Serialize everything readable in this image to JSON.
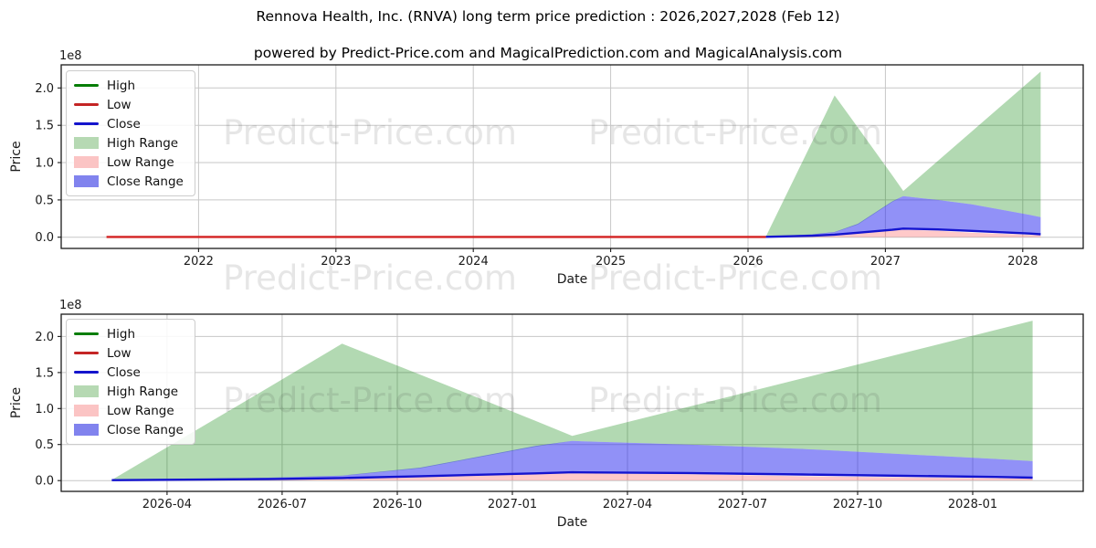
{
  "title": "Rennova Health, Inc. (RNVA) long term price prediction : 2026,2027,2028 (Feb 12)",
  "subtitle": "powered by Predict-Price.com and MagicalPrediction.com and MagicalAnalysis.com",
  "watermark": {
    "text": "Predict-Price.com"
  },
  "legend": {
    "position": "upper left",
    "items": [
      {
        "label": "High",
        "swatch": "line",
        "color": "#077d07"
      },
      {
        "label": "Low",
        "swatch": "line",
        "color": "#c42525"
      },
      {
        "label": "Close",
        "swatch": "line",
        "color": "#1414cc"
      },
      {
        "label": "High Range",
        "swatch": "fill",
        "color": "#b6d9b3"
      },
      {
        "label": "Low Range",
        "swatch": "fill",
        "color": "#fbc4c4"
      },
      {
        "label": "Close Range",
        "swatch": "fill",
        "color": "#8183ee"
      }
    ]
  },
  "chart_data": [
    {
      "id": "top",
      "type": "area",
      "title": "",
      "xlabel": "Date",
      "ylabel": "Price",
      "y_scale_label": "1e8",
      "y_unit_multiplier": 100000000,
      "grid": true,
      "xlim": [
        2021.0,
        2028.44
      ],
      "ylim": [
        -0.15,
        2.31
      ],
      "xticks": [
        {
          "v": 2022,
          "label": "2022"
        },
        {
          "v": 2023,
          "label": "2023"
        },
        {
          "v": 2024,
          "label": "2024"
        },
        {
          "v": 2025,
          "label": "2025"
        },
        {
          "v": 2026,
          "label": "2026"
        },
        {
          "v": 2027,
          "label": "2027"
        },
        {
          "v": 2028,
          "label": "2028"
        }
      ],
      "yticks": [
        {
          "v": 0.0,
          "label": "0.0"
        },
        {
          "v": 0.5,
          "label": "0.5"
        },
        {
          "v": 1.0,
          "label": "1.0"
        },
        {
          "v": 1.5,
          "label": "1.5"
        },
        {
          "v": 2.0,
          "label": "2.0"
        }
      ],
      "series": [
        {
          "name": "High Range",
          "kind": "band",
          "color": "rgba(0,128,0,0.30)",
          "x": [
            2026.13,
            2026.47,
            2026.63,
            2026.8,
            2027.05,
            2027.13,
            2027.38,
            2027.63,
            2028.05,
            2028.13
          ],
          "upper": [
            0.01,
            1.29,
            1.9,
            1.47,
            0.83,
            0.62,
            1.02,
            1.42,
            2.09,
            2.22
          ],
          "lower": [
            0.005,
            0.035,
            0.065,
            0.17,
            0.47,
            0.55,
            0.5,
            0.44,
            0.3,
            0.27
          ]
        },
        {
          "name": "Close Range",
          "kind": "band",
          "color": "rgba(35,35,240,0.50)",
          "x": [
            2026.13,
            2026.47,
            2026.63,
            2026.8,
            2027.05,
            2027.13,
            2027.38,
            2027.63,
            2028.05,
            2028.13
          ],
          "upper": [
            0.008,
            0.04,
            0.07,
            0.18,
            0.48,
            0.55,
            0.5,
            0.44,
            0.3,
            0.27
          ],
          "lower": [
            0.006,
            0.02,
            0.035,
            0.06,
            0.1,
            0.115,
            0.105,
            0.085,
            0.05,
            0.04
          ]
        },
        {
          "name": "Low Range",
          "kind": "band",
          "color": "rgba(255,40,40,0.25)",
          "x": [
            2026.13,
            2026.47,
            2026.63,
            2026.8,
            2027.05,
            2027.13,
            2027.38,
            2027.63,
            2028.05,
            2028.13
          ],
          "upper": [
            0.004,
            0.015,
            0.027,
            0.048,
            0.09,
            0.1,
            0.088,
            0.06,
            0.032,
            0.028
          ],
          "lower": [
            0.002,
            0.002,
            0.002,
            0.002,
            0.002,
            0.002,
            0.002,
            0.002,
            0.002,
            0.002
          ]
        },
        {
          "name": "Low",
          "kind": "line",
          "color": "#d42222",
          "x": [
            2021.33,
            2026.13
          ],
          "y": [
            0.004,
            0.004
          ]
        },
        {
          "name": "Close",
          "kind": "line",
          "color": "#1414cf",
          "x": [
            2026.13,
            2026.47,
            2026.63,
            2026.8,
            2027.05,
            2027.13,
            2027.38,
            2027.63,
            2028.05,
            2028.13
          ],
          "y": [
            0.006,
            0.02,
            0.035,
            0.06,
            0.1,
            0.115,
            0.105,
            0.085,
            0.05,
            0.04
          ]
        }
      ]
    },
    {
      "id": "bottom",
      "type": "area",
      "title": "",
      "xlabel": "Date",
      "ylabel": "Price",
      "y_scale_label": "1e8",
      "y_unit_multiplier": 100000000,
      "grid": true,
      "xlim": [
        2026.02,
        2028.24
      ],
      "ylim": [
        -0.15,
        2.31
      ],
      "xticks": [
        {
          "v": 2026.25,
          "label": "2026-04"
        },
        {
          "v": 2026.5,
          "label": "2026-07"
        },
        {
          "v": 2026.75,
          "label": "2026-10"
        },
        {
          "v": 2027.0,
          "label": "2027-01"
        },
        {
          "v": 2027.25,
          "label": "2027-04"
        },
        {
          "v": 2027.5,
          "label": "2027-07"
        },
        {
          "v": 2027.75,
          "label": "2027-10"
        },
        {
          "v": 2028.0,
          "label": "2028-01"
        }
      ],
      "yticks": [
        {
          "v": 0.0,
          "label": "0.0"
        },
        {
          "v": 0.5,
          "label": "0.5"
        },
        {
          "v": 1.0,
          "label": "1.0"
        },
        {
          "v": 1.5,
          "label": "1.5"
        },
        {
          "v": 2.0,
          "label": "2.0"
        }
      ],
      "series": [
        {
          "name": "High Range",
          "kind": "band",
          "color": "rgba(0,128,0,0.30)",
          "x": [
            2026.13,
            2026.47,
            2026.63,
            2026.8,
            2027.05,
            2027.13,
            2027.38,
            2027.63,
            2028.05,
            2028.13
          ],
          "upper": [
            0.01,
            1.29,
            1.9,
            1.47,
            0.83,
            0.62,
            1.02,
            1.42,
            2.09,
            2.22
          ],
          "lower": [
            0.005,
            0.035,
            0.065,
            0.17,
            0.47,
            0.55,
            0.5,
            0.44,
            0.3,
            0.27
          ]
        },
        {
          "name": "Close Range",
          "kind": "band",
          "color": "rgba(35,35,240,0.50)",
          "x": [
            2026.13,
            2026.47,
            2026.63,
            2026.8,
            2027.05,
            2027.13,
            2027.38,
            2027.63,
            2028.05,
            2028.13
          ],
          "upper": [
            0.008,
            0.04,
            0.07,
            0.18,
            0.48,
            0.55,
            0.5,
            0.44,
            0.3,
            0.27
          ],
          "lower": [
            0.006,
            0.02,
            0.035,
            0.06,
            0.1,
            0.115,
            0.105,
            0.085,
            0.05,
            0.04
          ]
        },
        {
          "name": "Low Range",
          "kind": "band",
          "color": "rgba(255,40,40,0.25)",
          "x": [
            2026.13,
            2026.47,
            2026.63,
            2026.8,
            2027.05,
            2027.13,
            2027.38,
            2027.63,
            2028.05,
            2028.13
          ],
          "upper": [
            0.004,
            0.015,
            0.027,
            0.048,
            0.09,
            0.1,
            0.088,
            0.06,
            0.032,
            0.028
          ],
          "lower": [
            0.002,
            0.002,
            0.002,
            0.002,
            0.002,
            0.002,
            0.002,
            0.002,
            0.002,
            0.002
          ]
        },
        {
          "name": "Close",
          "kind": "line",
          "color": "#1414cf",
          "x": [
            2026.13,
            2026.47,
            2026.63,
            2026.8,
            2027.05,
            2027.13,
            2027.38,
            2027.63,
            2028.05,
            2028.13
          ],
          "y": [
            0.006,
            0.02,
            0.035,
            0.06,
            0.1,
            0.115,
            0.105,
            0.085,
            0.05,
            0.04
          ]
        }
      ]
    }
  ]
}
